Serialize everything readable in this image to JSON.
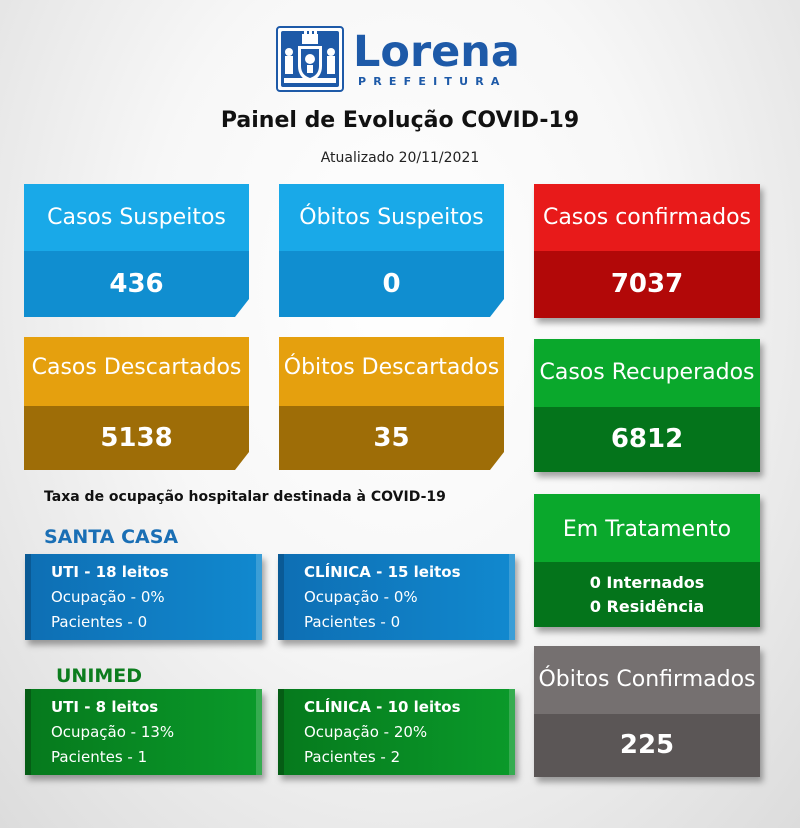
{
  "header": {
    "logo_word": "Lorena",
    "logo_sub": "PREFEITURA",
    "title": "Painel de Evolução COVID-19",
    "updated": "Atualizado 20/11/2021"
  },
  "cards": {
    "casos_suspeitos": {
      "label": "Casos Suspeitos",
      "value": "436"
    },
    "obitos_suspeitos": {
      "label": "Óbitos Suspeitos",
      "value": "0"
    },
    "casos_confirmados": {
      "label": "Casos confirmados",
      "value": "7037"
    },
    "casos_descartados": {
      "label": "Casos Descartados",
      "value": "5138"
    },
    "obitos_descartados": {
      "label": "Óbitos Descartados",
      "value": "35"
    },
    "casos_recuperados": {
      "label": "Casos Recuperados",
      "value": "6812"
    },
    "em_tratamento": {
      "label": "Em Tratamento",
      "internados": "0 Internados",
      "residencia": "0 Residência"
    },
    "obitos_confirmados": {
      "label": "Óbitos Confirmados",
      "value": "225"
    }
  },
  "hospital": {
    "title": "Taxa de ocupação hospitalar destinada à COVID-19",
    "santa_casa": {
      "name": "SANTA CASA",
      "uti": {
        "title": "UTI - 18 leitos",
        "ocupacao": "Ocupação - 0%",
        "pacientes": "Pacientes - 0"
      },
      "clinica": {
        "title": "CLÍNICA - 15 leitos",
        "ocupacao": "Ocupação - 0%",
        "pacientes": "Pacientes - 0"
      }
    },
    "unimed": {
      "name": "UNIMED",
      "uti": {
        "title": "UTI - 8 leitos",
        "ocupacao": "Ocupação - 13%",
        "pacientes": "Pacientes - 1"
      },
      "clinica": {
        "title": "CLÍNICA - 10 leitos",
        "ocupacao": "Ocupação - 20%",
        "pacientes": "Pacientes - 2"
      }
    }
  },
  "colors": {
    "brand_blue": "#1e5aa8",
    "blue": "#19a9e8",
    "red": "#e81a1a",
    "gold": "#e5a00e",
    "green": "#0aa82c",
    "gray": "#757070"
  }
}
